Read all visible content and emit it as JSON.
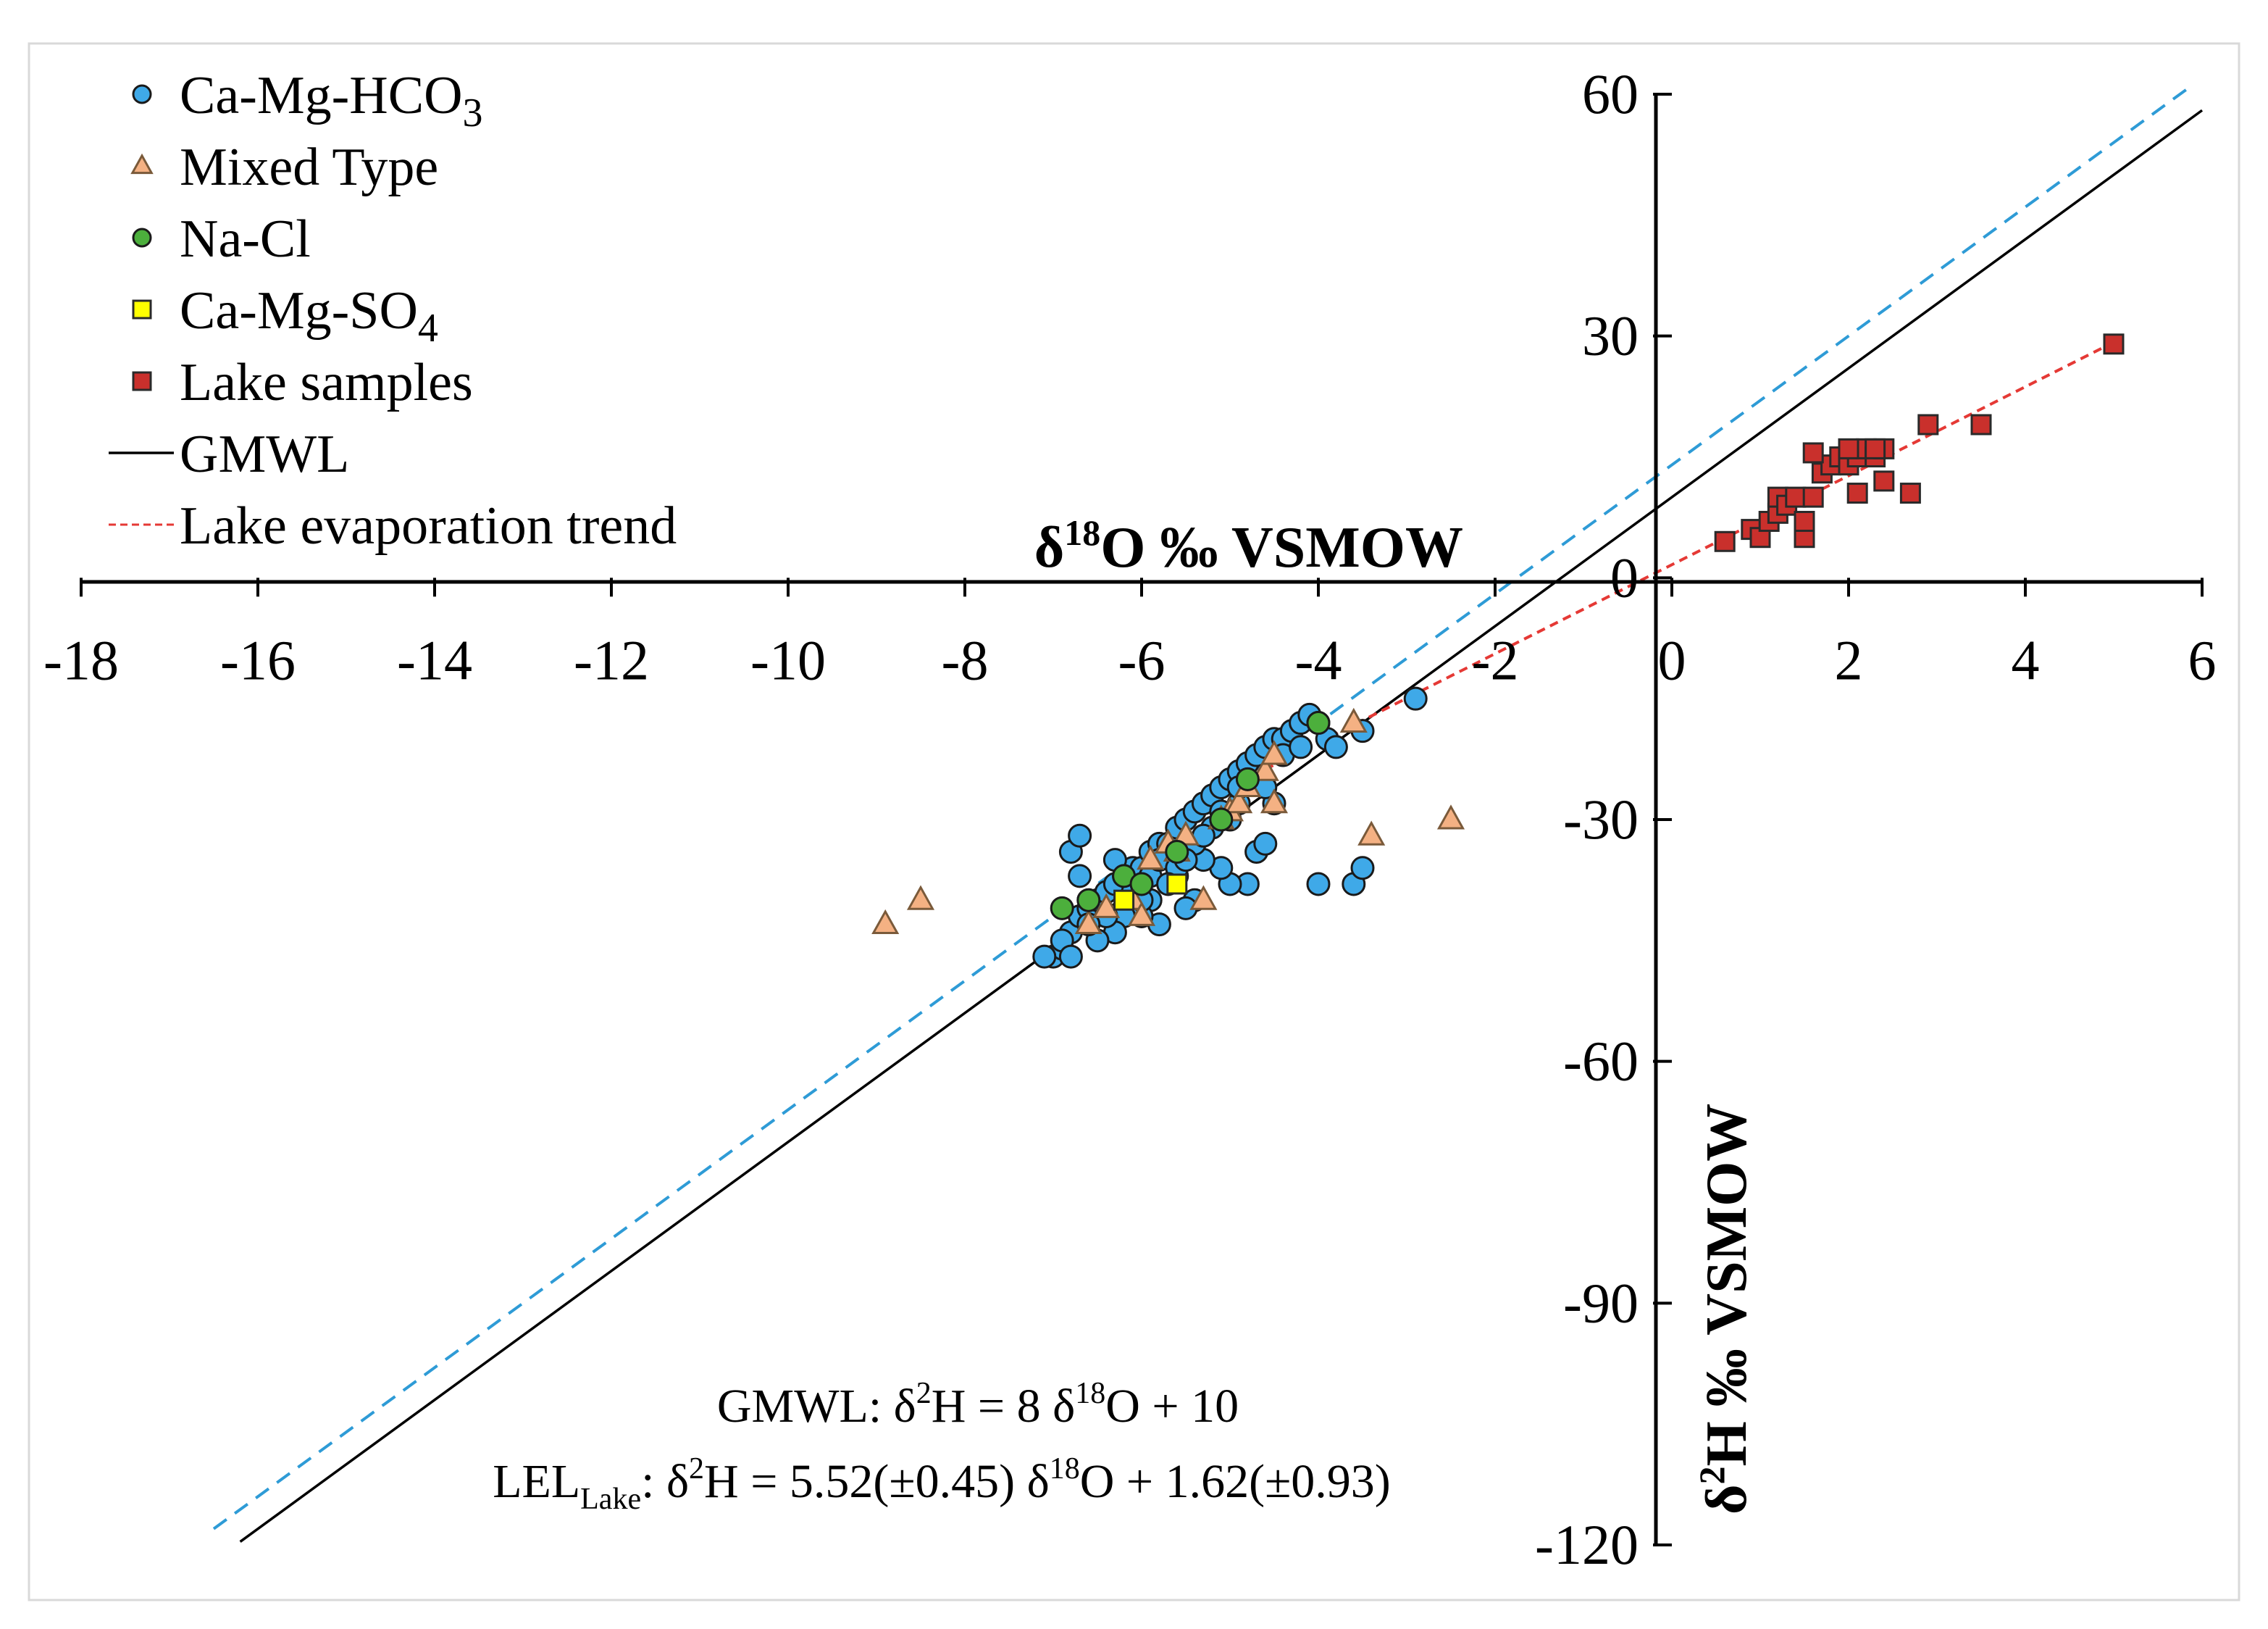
{
  "chart_data": {
    "type": "scatter",
    "xlabel": "δ¹⁸O ‰ VSMOW",
    "xlabel_parts": {
      "delta": "δ",
      "sup": "18",
      "rest": "O ‰ VSMOW"
    },
    "ylabel": "δ²H ‰ VSMOW",
    "ylabel_parts": {
      "delta": "δ",
      "sup": "2",
      "rest": "H ‰ VSMOW"
    },
    "xlim": [
      -18,
      6
    ],
    "ylim": [
      -120,
      60
    ],
    "x_ticks": [
      -18,
      -16,
      -14,
      -12,
      -10,
      -8,
      -6,
      -4,
      -2,
      0,
      2,
      4,
      6
    ],
    "y_ticks": [
      60,
      30,
      0,
      -30,
      -60,
      -90,
      -120
    ],
    "legend_position": "top-left",
    "legend": [
      {
        "key": "ca_mg_hco3",
        "label": "Ca-Mg-HCO",
        "sub": "3",
        "marker": "circle",
        "color": "#3fa9e8"
      },
      {
        "key": "mixed",
        "label": "Mixed Type",
        "sub": "",
        "marker": "triangle",
        "color": "#f4b183"
      },
      {
        "key": "na_cl",
        "label": "Na-Cl",
        "sub": "",
        "marker": "circle",
        "color": "#4caf3c"
      },
      {
        "key": "ca_mg_so4",
        "label": "Ca-Mg-SO",
        "sub": "4",
        "marker": "square",
        "color": "#ffff00"
      },
      {
        "key": "lake",
        "label": "Lake samples",
        "sub": "",
        "marker": "square",
        "color": "#c9302c"
      },
      {
        "key": "gmwl",
        "label": "GMWL",
        "sub": "",
        "marker": "line",
        "color": "#000000"
      },
      {
        "key": "lel",
        "label": "Lake evaporation trend",
        "sub": "",
        "marker": "dashed-line",
        "color": "#e53935"
      }
    ],
    "lines": [
      {
        "name": "GMWL",
        "slope": 8,
        "intercept": 10,
        "x_range": [
          -16.2,
          6
        ],
        "color": "#000000",
        "dash": "solid"
      },
      {
        "name": "Local meteoric water line (dashed)",
        "slope": 8,
        "intercept": 14,
        "x_range": [
          -16.5,
          5.9
        ],
        "color": "#2e9bd6",
        "dash": "dashed"
      },
      {
        "name": "Lake evaporation trend",
        "slope": 5.52,
        "intercept": 1.62,
        "x_range": [
          -4.6,
          5.0
        ],
        "color": "#e53935",
        "dash": "dotted"
      }
    ],
    "equations": {
      "gmwl": {
        "prefix": "GMWL: δ",
        "sup1": "2",
        "mid": "H = 8 δ",
        "sup2": "18",
        "end": "O + 10"
      },
      "lel": {
        "prefix": "LEL",
        "sub": "Lake",
        "colon": ": δ",
        "sup1": "2",
        "mid": "H = 5.52(±0.45) δ",
        "sup2": "18",
        "end": "O + 1.62(±0.93)"
      }
    },
    "series": [
      {
        "name": "Ca-Mg-HCO3",
        "marker": "circle",
        "color": "#3fa9e8",
        "points": [
          [
            -7.0,
            -47
          ],
          [
            -6.9,
            -46
          ],
          [
            -6.8,
            -44
          ],
          [
            -6.7,
            -42
          ],
          [
            -6.9,
            -45
          ],
          [
            -6.6,
            -41
          ],
          [
            -6.5,
            -40
          ],
          [
            -6.4,
            -39
          ],
          [
            -6.3,
            -38
          ],
          [
            -6.2,
            -37
          ],
          [
            -6.1,
            -36
          ],
          [
            -6.0,
            -36
          ],
          [
            -5.9,
            -34
          ],
          [
            -5.8,
            -33
          ],
          [
            -5.7,
            -33
          ],
          [
            -5.6,
            -31
          ],
          [
            -5.5,
            -30
          ],
          [
            -5.4,
            -29
          ],
          [
            -5.3,
            -28
          ],
          [
            -5.2,
            -27
          ],
          [
            -5.1,
            -26
          ],
          [
            -5.0,
            -25
          ],
          [
            -4.9,
            -24
          ],
          [
            -4.8,
            -23
          ],
          [
            -4.7,
            -22
          ],
          [
            -4.6,
            -21
          ],
          [
            -4.5,
            -20
          ],
          [
            -4.4,
            -20
          ],
          [
            -4.3,
            -19
          ],
          [
            -4.2,
            -18
          ],
          [
            -4.1,
            -17
          ],
          [
            -4.0,
            -18
          ],
          [
            -3.9,
            -20
          ],
          [
            -3.8,
            -21
          ],
          [
            -3.5,
            -19
          ],
          [
            -2.9,
            -15
          ],
          [
            -3.6,
            -38
          ],
          [
            -3.5,
            -36
          ],
          [
            -4.0,
            -38
          ],
          [
            -4.5,
            -28
          ],
          [
            -4.6,
            -26
          ],
          [
            -4.7,
            -34
          ],
          [
            -4.6,
            -33
          ],
          [
            -4.8,
            -38
          ],
          [
            -5.0,
            -38
          ],
          [
            -5.1,
            -36
          ],
          [
            -5.3,
            -35
          ],
          [
            -5.4,
            -40
          ],
          [
            -5.5,
            -41
          ],
          [
            -5.6,
            -37
          ],
          [
            -5.8,
            -43
          ],
          [
            -5.9,
            -40
          ],
          [
            -6.0,
            -42
          ],
          [
            -6.2,
            -42
          ],
          [
            -6.3,
            -44
          ],
          [
            -6.5,
            -45
          ],
          [
            -6.7,
            -37
          ],
          [
            -6.8,
            -34
          ],
          [
            -6.7,
            -32
          ],
          [
            -6.3,
            -35
          ],
          [
            -6.1,
            -39
          ],
          [
            -5.9,
            -37
          ],
          [
            -5.8,
            -35
          ],
          [
            -5.6,
            -34
          ],
          [
            -5.4,
            -33
          ],
          [
            -5.2,
            -31
          ],
          [
            -5.0,
            -30
          ],
          [
            -4.9,
            -28
          ],
          [
            -5.1,
            -29
          ],
          [
            -5.3,
            -32
          ],
          [
            -5.6,
            -36
          ],
          [
            -5.7,
            -38
          ],
          [
            -6.0,
            -40
          ],
          [
            -6.4,
            -42
          ],
          [
            -6.6,
            -43
          ],
          [
            -4.4,
            -22
          ],
          [
            -4.2,
            -21
          ],
          [
            -4.9,
            -26
          ],
          [
            -5.5,
            -35
          ],
          [
            -6.8,
            -47
          ],
          [
            -7.1,
            -47
          ]
        ]
      },
      {
        "name": "Mixed Type",
        "marker": "triangle",
        "color": "#f4b183",
        "points": [
          [
            -8.9,
            -43
          ],
          [
            -8.5,
            -40
          ],
          [
            -6.6,
            -43
          ],
          [
            -6.4,
            -41
          ],
          [
            -6.1,
            -40
          ],
          [
            -6.0,
            -42
          ],
          [
            -5.9,
            -35
          ],
          [
            -5.7,
            -33
          ],
          [
            -5.6,
            -34
          ],
          [
            -5.5,
            -32
          ],
          [
            -5.3,
            -40
          ],
          [
            -5.1,
            -30
          ],
          [
            -5.0,
            -29
          ],
          [
            -4.9,
            -28
          ],
          [
            -4.8,
            -26
          ],
          [
            -4.6,
            -24
          ],
          [
            -4.5,
            -22
          ],
          [
            -4.5,
            -28
          ],
          [
            -3.6,
            -18
          ],
          [
            -3.4,
            -32
          ],
          [
            -2.5,
            -30
          ]
        ]
      },
      {
        "name": "Na-Cl",
        "marker": "circle",
        "color": "#4caf3c",
        "points": [
          [
            -6.9,
            -41
          ],
          [
            -6.6,
            -40
          ],
          [
            -6.2,
            -37
          ],
          [
            -6.0,
            -38
          ],
          [
            -5.6,
            -34
          ],
          [
            -5.1,
            -30
          ],
          [
            -4.8,
            -25
          ],
          [
            -4.0,
            -18
          ]
        ]
      },
      {
        "name": "Ca-Mg-SO4",
        "marker": "square",
        "color": "#ffff00",
        "points": [
          [
            -6.2,
            -40
          ],
          [
            -5.6,
            -38
          ]
        ]
      },
      {
        "name": "Lake samples",
        "marker": "square",
        "color": "#c9302c",
        "points": [
          [
            0.6,
            4.5
          ],
          [
            0.9,
            6
          ],
          [
            1.0,
            5
          ],
          [
            1.1,
            7
          ],
          [
            1.2,
            8
          ],
          [
            1.2,
            10
          ],
          [
            1.3,
            9
          ],
          [
            1.4,
            10
          ],
          [
            1.5,
            5
          ],
          [
            1.5,
            7
          ],
          [
            1.6,
            10
          ],
          [
            1.7,
            13
          ],
          [
            1.8,
            14
          ],
          [
            1.9,
            15
          ],
          [
            2.0,
            14
          ],
          [
            2.1,
            15
          ],
          [
            2.2,
            16
          ],
          [
            2.3,
            15
          ],
          [
            2.4,
            12
          ],
          [
            2.4,
            16
          ],
          [
            2.1,
            10.5
          ],
          [
            1.6,
            15.5
          ],
          [
            2.0,
            16
          ],
          [
            2.3,
            16
          ],
          [
            2.7,
            10.5
          ],
          [
            2.9,
            19
          ],
          [
            3.5,
            19
          ],
          [
            5.0,
            29
          ]
        ]
      }
    ]
  }
}
